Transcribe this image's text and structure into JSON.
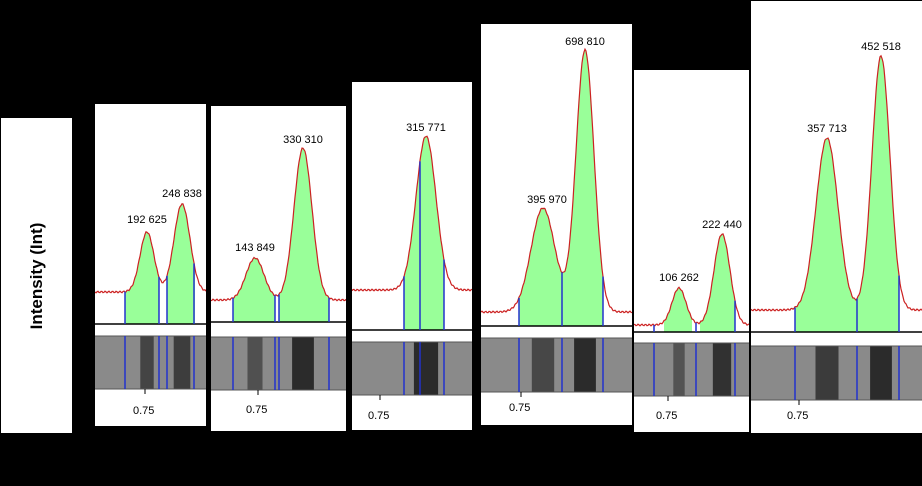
{
  "y_axis_label": "Intensity (Int)",
  "chart_data": [
    {
      "type": "area",
      "lane": "",
      "peaks": [
        {
          "label": "192 625"
        },
        {
          "label": "248 838"
        }
      ],
      "tick": "0.75"
    },
    {
      "type": "area",
      "lane": "",
      "peaks": [
        {
          "label": "143 849"
        },
        {
          "label": "330 310"
        }
      ],
      "tick": "0.75"
    },
    {
      "type": "area",
      "lane": "",
      "peaks": [
        {
          "label": "315 771"
        }
      ],
      "tick": "0.75"
    },
    {
      "type": "area",
      "lane": "",
      "peaks": [
        {
          "label": "395 970"
        },
        {
          "label": "698 810"
        }
      ],
      "tick": "0.75"
    },
    {
      "type": "area",
      "lane": "",
      "peaks": [
        {
          "label": "106 262"
        },
        {
          "label": "222 440"
        }
      ],
      "tick": "0.75"
    },
    {
      "type": "area",
      "lane": "",
      "peaks": [
        {
          "label": "357 713"
        },
        {
          "label": "452 518"
        }
      ],
      "tick": "0.75"
    }
  ],
  "colors": {
    "fill": "#99ff99",
    "curve": "#cc2222",
    "marker": "#2233cc",
    "background": "#000000"
  }
}
